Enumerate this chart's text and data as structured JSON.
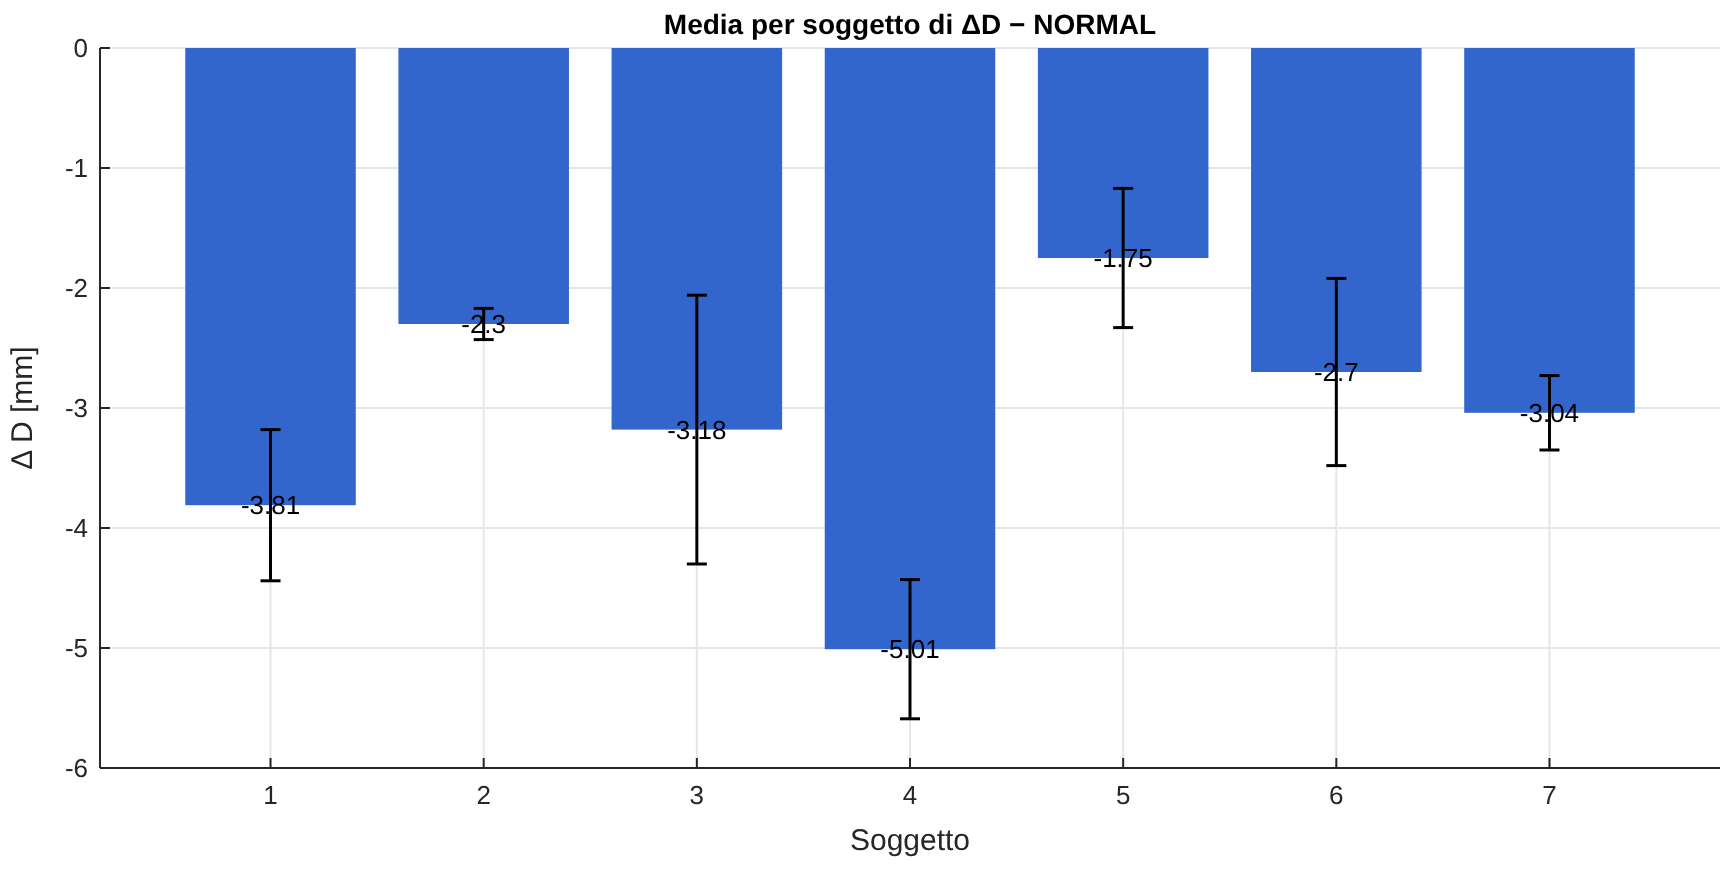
{
  "chart_data": {
    "type": "bar",
    "title": "Media per soggetto di ΔD − NORMAL",
    "xlabel": "Soggetto",
    "ylabel": "Δ D [mm]",
    "categories": [
      "1",
      "2",
      "3",
      "4",
      "5",
      "6",
      "7"
    ],
    "values": [
      -3.81,
      -2.3,
      -3.18,
      -5.01,
      -1.75,
      -2.7,
      -3.04
    ],
    "errors": [
      0.63,
      0.13,
      1.12,
      0.58,
      0.58,
      0.78,
      0.31
    ],
    "color": "#3366cc",
    "ylim": [
      -6,
      0
    ],
    "yticks": [
      -6,
      -5,
      -4,
      -3,
      -2,
      -1,
      0
    ],
    "grid": true,
    "data_labels": true
  }
}
